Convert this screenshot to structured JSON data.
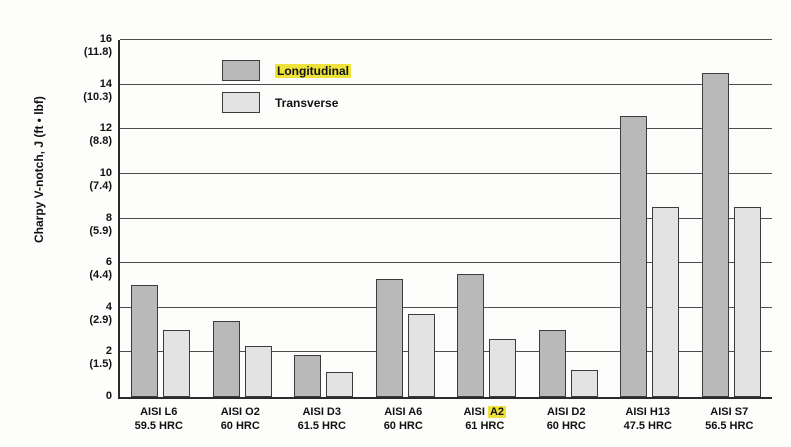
{
  "colors": {
    "highlight": "#ece23a",
    "axis": "#2b2b2b",
    "bar_longitudinal": "#b9b9b9",
    "bar_transverse": "#e3e3e3",
    "background": "#fdfdfc"
  },
  "chart_data": {
    "type": "bar",
    "title": "",
    "xlabel": "",
    "ylabel": "Charpy V-notch, J (ft • lbf)",
    "ylim": [
      0,
      16
    ],
    "grid": true,
    "legend_position": "top-left-inside",
    "yticks": [
      {
        "j": "0",
        "ftlbf": ""
      },
      {
        "j": "2",
        "ftlbf": "(1.5)"
      },
      {
        "j": "4",
        "ftlbf": "(2.9)"
      },
      {
        "j": "6",
        "ftlbf": "(4.4)"
      },
      {
        "j": "8",
        "ftlbf": "(5.9)"
      },
      {
        "j": "10",
        "ftlbf": "(7.4)"
      },
      {
        "j": "12",
        "ftlbf": "(8.8)"
      },
      {
        "j": "14",
        "ftlbf": "(10.3)"
      },
      {
        "j": "16",
        "ftlbf": "(11.8)"
      }
    ],
    "categories": [
      {
        "line1": "AISI L6",
        "line2": "59.5 HRC"
      },
      {
        "line1": "AISI O2",
        "line2": "60 HRC"
      },
      {
        "line1": "AISI D3",
        "line2": "61.5 HRC"
      },
      {
        "line1": "AISI A6",
        "line2": "60 HRC"
      },
      {
        "line1": "AISI A2",
        "line2": "61 HRC",
        "highlight_word": "A2"
      },
      {
        "line1": "AISI D2",
        "line2": "60 HRC"
      },
      {
        "line1": "AISI H13",
        "line2": "47.5 HRC"
      },
      {
        "line1": "AISI S7",
        "line2": "56.5 HRC"
      }
    ],
    "series": [
      {
        "name": "Longitudinal",
        "color": "#b9b9b9",
        "values": [
          5.0,
          3.4,
          1.9,
          5.3,
          5.5,
          3.0,
          12.6,
          14.5
        ]
      },
      {
        "name": "Transverse",
        "color": "#e3e3e3",
        "values": [
          3.0,
          2.3,
          1.1,
          3.7,
          2.6,
          1.2,
          8.5,
          8.5
        ]
      }
    ]
  }
}
